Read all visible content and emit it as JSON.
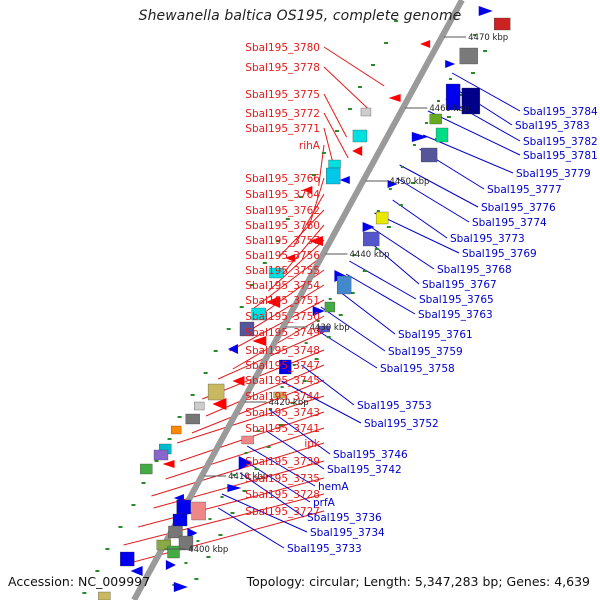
{
  "header": {
    "title": "Shewanella baltica OS195, complete genome"
  },
  "footer": {
    "accession": "Accession: NC_009997",
    "topology": "Topology: circular; Length: 5,347,283 bp; Genes: 4,639"
  },
  "colors": {
    "forward_label": "#e41a1c",
    "reverse_label": "#0000cc",
    "backbone": "#9a9a9a",
    "tick": "#2a8a2a"
  },
  "scale_marks": [
    "4400 kbp",
    "4410 kbp",
    "4420 kbp",
    "4430 kbp",
    "4440 kbp",
    "4450 kbp",
    "4460 kbp",
    "4470 kbp"
  ],
  "left_labels": [
    "Sbal195_3780",
    "Sbal195_3778",
    "Sbal195_3775",
    "Sbal195_3772",
    "Sbal195_3771",
    "rihA",
    "Sbal195_3766",
    "Sbal195_3764",
    "Sbal195_3762",
    "Sbal195_3760",
    "Sbal195_3757",
    "Sbal195_3756",
    "Sbal195_3755",
    "Sbal195_3754",
    "Sbal195_3751",
    "Sbal195_3750",
    "Sbal195_3749",
    "Sbal195_3748",
    "Sbal195_3747",
    "Sbal195_3745",
    "Sbal195_3744",
    "Sbal195_3743",
    "Sbal195_3741",
    "ipk",
    "Sbal195_3739",
    "Sbal195_3735",
    "Sbal195_3728",
    "Sbal195_3727"
  ],
  "right_labels": [
    "Sbal195_3784",
    "Sbal195_3783",
    "Sbal195_3782",
    "Sbal195_3781",
    "Sbal195_3779",
    "Sbal195_3777",
    "Sbal195_3776",
    "Sbal195_3774",
    "Sbal195_3773",
    "Sbal195_3769",
    "Sbal195_3768",
    "Sbal195_3767",
    "Sbal195_3765",
    "Sbal195_3763",
    "Sbal195_3761",
    "Sbal195_3759",
    "Sbal195_3758",
    "Sbal195_3753",
    "Sbal195_3752",
    "Sbal195_3746",
    "Sbal195_3742",
    "hemA",
    "prfA",
    "Sbal195_3736",
    "Sbal195_3734",
    "Sbal195_3733"
  ]
}
